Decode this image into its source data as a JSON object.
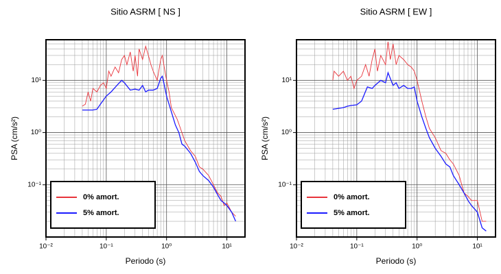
{
  "chart_data": [
    {
      "type": "line",
      "title": "Sitio ASRM [ NS ]",
      "x_label": "Periodo (s)",
      "y_label": "PSA (cm/s²)",
      "xscale": "log",
      "yscale": "log",
      "grid": true,
      "legend": "lower left",
      "xlim": [
        0.01,
        20
      ],
      "ylim": [
        0.01,
        60
      ],
      "xticks": [
        {
          "value": 0.01,
          "label": "10⁻²"
        },
        {
          "value": 0.1,
          "label": "10⁻¹"
        },
        {
          "value": 1,
          "label": "10⁰"
        },
        {
          "value": 10,
          "label": "10¹"
        }
      ],
      "yticks": [
        {
          "value": 0.1,
          "label": "10⁻¹"
        },
        {
          "value": 1,
          "label": "10⁰"
        },
        {
          "value": 10,
          "label": "10¹"
        }
      ],
      "series": [
        {
          "name": "0% amort.",
          "color": "#e8333a",
          "x": [
            0.04,
            0.045,
            0.05,
            0.055,
            0.06,
            0.07,
            0.08,
            0.09,
            0.1,
            0.11,
            0.12,
            0.14,
            0.16,
            0.18,
            0.2,
            0.22,
            0.25,
            0.28,
            0.3,
            0.33,
            0.35,
            0.4,
            0.45,
            0.5,
            0.55,
            0.6,
            0.7,
            0.8,
            0.85,
            0.9,
            1.0,
            1.1,
            1.2,
            1.3,
            1.5,
            1.7,
            2.0,
            2.5,
            3,
            3.5,
            4,
            5,
            6,
            7,
            8,
            9,
            10,
            12,
            14
          ],
          "values": [
            3.2,
            3.5,
            6,
            4,
            7,
            6,
            8,
            9,
            7,
            15,
            12,
            18,
            14,
            25,
            30,
            20,
            35,
            15,
            30,
            12,
            40,
            25,
            45,
            30,
            20,
            15,
            10,
            25,
            30,
            20,
            10,
            6,
            3,
            2.5,
            1.8,
            1.2,
            0.7,
            0.45,
            0.35,
            0.22,
            0.2,
            0.15,
            0.1,
            0.07,
            0.06,
            0.04,
            0.045,
            0.03,
            0.025
          ]
        },
        {
          "name": "5% amort.",
          "color": "#1a1aff",
          "x": [
            0.04,
            0.06,
            0.07,
            0.08,
            0.1,
            0.12,
            0.15,
            0.18,
            0.2,
            0.25,
            0.3,
            0.35,
            0.4,
            0.45,
            0.5,
            0.6,
            0.7,
            0.8,
            0.85,
            0.9,
            1.0,
            1.2,
            1.4,
            1.6,
            1.8,
            2.0,
            2.5,
            3,
            3.5,
            4,
            5,
            6,
            7,
            8,
            9,
            10,
            12,
            14
          ],
          "values": [
            2.7,
            2.7,
            2.8,
            3.5,
            5,
            6,
            8,
            10,
            9,
            6.5,
            6.8,
            6.5,
            8,
            6,
            6.5,
            6.5,
            7,
            11,
            12,
            9,
            5,
            2.5,
            1.4,
            1.0,
            0.6,
            0.55,
            0.4,
            0.27,
            0.18,
            0.15,
            0.12,
            0.09,
            0.065,
            0.05,
            0.045,
            0.04,
            0.03,
            0.02
          ]
        }
      ]
    },
    {
      "type": "line",
      "title": "Sitio ASRM [ EW ]",
      "x_label": "Periodo (s)",
      "y_label": "PSA (cm/s²)",
      "xscale": "log",
      "yscale": "log",
      "grid": true,
      "legend": "lower left",
      "xlim": [
        0.01,
        20
      ],
      "ylim": [
        0.01,
        60
      ],
      "xticks": [
        {
          "value": 0.01,
          "label": "10⁻²"
        },
        {
          "value": 0.1,
          "label": "10⁻¹"
        },
        {
          "value": 1,
          "label": "10⁰"
        },
        {
          "value": 10,
          "label": "10¹"
        }
      ],
      "yticks": [
        {
          "value": 0.1,
          "label": "10⁻¹"
        },
        {
          "value": 1,
          "label": "10⁰"
        },
        {
          "value": 10,
          "label": "10¹"
        }
      ],
      "series": [
        {
          "name": "0% amort.",
          "color": "#e8333a",
          "x": [
            0.04,
            0.042,
            0.05,
            0.06,
            0.07,
            0.08,
            0.09,
            0.1,
            0.12,
            0.14,
            0.16,
            0.18,
            0.2,
            0.22,
            0.25,
            0.3,
            0.33,
            0.36,
            0.4,
            0.45,
            0.5,
            0.6,
            0.7,
            0.8,
            0.9,
            1.0,
            1.2,
            1.4,
            1.6,
            2.0,
            2.5,
            3,
            3.5,
            4,
            5,
            6,
            7,
            8,
            10,
            12,
            14
          ],
          "values": [
            10,
            15,
            12,
            15,
            10,
            12,
            7,
            10,
            12,
            20,
            12,
            25,
            40,
            15,
            30,
            20,
            55,
            25,
            50,
            20,
            30,
            25,
            20,
            18,
            15,
            10,
            4,
            2,
            1.2,
            0.8,
            0.45,
            0.4,
            0.3,
            0.25,
            0.15,
            0.07,
            0.06,
            0.05,
            0.05,
            0.02,
            0.02
          ]
        },
        {
          "name": "5% amort.",
          "color": "#1a1aff",
          "x": [
            0.04,
            0.06,
            0.07,
            0.08,
            0.1,
            0.12,
            0.15,
            0.18,
            0.2,
            0.25,
            0.3,
            0.33,
            0.4,
            0.45,
            0.5,
            0.6,
            0.7,
            0.8,
            0.9,
            1.0,
            1.2,
            1.4,
            1.6,
            2.0,
            2.5,
            3,
            3.5,
            4,
            5,
            6,
            7,
            8,
            10,
            12,
            14
          ],
          "values": [
            2.8,
            3,
            3.2,
            3.3,
            3.4,
            4,
            7.5,
            7,
            8,
            10,
            9,
            14,
            8,
            9,
            7,
            8,
            7,
            7,
            7.5,
            4,
            2.0,
            1.2,
            0.8,
            0.5,
            0.35,
            0.25,
            0.22,
            0.15,
            0.1,
            0.07,
            0.05,
            0.04,
            0.03,
            0.015,
            0.013
          ]
        }
      ]
    }
  ]
}
